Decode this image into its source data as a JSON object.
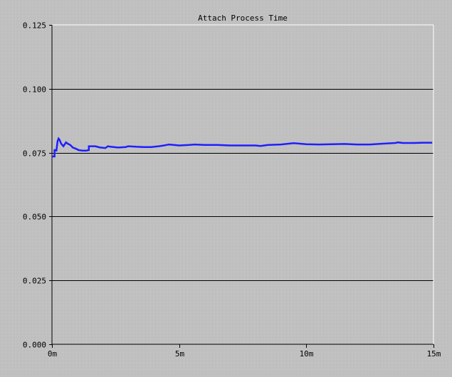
{
  "colors": {
    "background": "#c0c0c0",
    "plot_background": "#bdbdbd",
    "gridline": "#000000",
    "border": "#ffffff",
    "series": "#1f1fff"
  },
  "chart_data": {
    "type": "line",
    "title": "Attach Process Time",
    "xlabel": "",
    "ylabel": "",
    "xlim": [
      0,
      15
    ],
    "ylim": [
      0,
      0.125
    ],
    "grid": true,
    "x_tick_values": [
      0,
      5,
      10,
      15
    ],
    "x_tick_labels": [
      "0m",
      "5m",
      "10m",
      "15m"
    ],
    "y_tick_values": [
      0,
      0.025,
      0.05,
      0.075,
      0.1,
      0.125
    ],
    "y_tick_labels": [
      "0.000",
      "0.025",
      "0.050",
      "0.075",
      "0.100",
      "0.125"
    ],
    "series": [
      {
        "x": [
          0,
          0.1,
          0.1,
          0.17,
          0.17,
          0.22,
          0.26,
          0.3,
          0.36,
          0.45,
          0.55,
          0.62,
          0.72,
          0.82,
          0.95,
          1.05,
          1.2,
          1.35,
          1.45,
          1.45,
          1.7,
          1.9,
          2.1,
          2.2,
          2.3,
          2.6,
          2.9,
          3.0,
          3.3,
          3.6,
          3.9,
          4.2,
          4.4,
          4.5,
          4.6,
          5.0,
          5.4,
          5.6,
          6.0,
          6.5,
          7.0,
          7.5,
          8.0,
          8.2,
          8.5,
          9.0,
          9.3,
          9.5,
          10.0,
          10.5,
          11.0,
          11.5,
          12.0,
          12.5,
          13.0,
          13.5,
          13.6,
          13.8,
          14.2,
          14.6,
          14.95
        ],
        "y": [
          0.0735,
          0.0735,
          0.076,
          0.076,
          0.0755,
          0.0795,
          0.0805,
          0.08,
          0.0785,
          0.0775,
          0.079,
          0.0785,
          0.078,
          0.077,
          0.0765,
          0.076,
          0.0758,
          0.0758,
          0.076,
          0.0775,
          0.0775,
          0.077,
          0.0768,
          0.0775,
          0.0773,
          0.077,
          0.0772,
          0.0775,
          0.0773,
          0.0772,
          0.0772,
          0.0775,
          0.0778,
          0.078,
          0.0782,
          0.0778,
          0.078,
          0.0782,
          0.078,
          0.078,
          0.0778,
          0.0778,
          0.0778,
          0.0776,
          0.078,
          0.0782,
          0.0785,
          0.0787,
          0.0783,
          0.0782,
          0.0783,
          0.0784,
          0.0782,
          0.0782,
          0.0785,
          0.0788,
          0.079,
          0.0788,
          0.0788,
          0.0789,
          0.0789
        ]
      }
    ]
  }
}
